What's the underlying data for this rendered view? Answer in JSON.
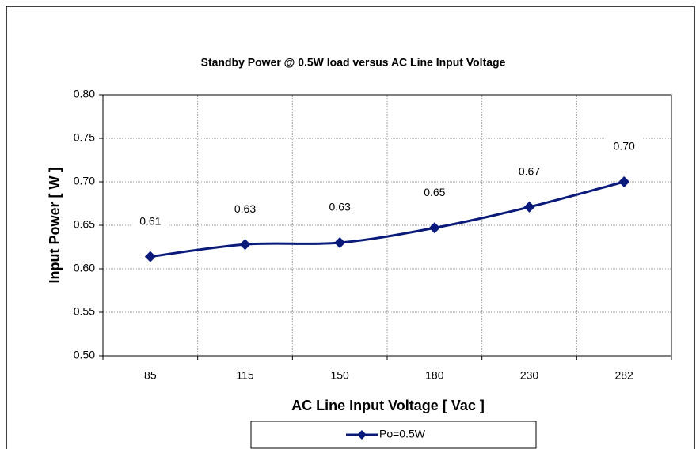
{
  "chart_data": {
    "type": "line",
    "title": "Standby Power @ 0.5W  load versus AC Line Input Voltage",
    "x_label": "AC Line Input Voltage [ Vac ]",
    "y_label": "Input Power [ W ]",
    "categories": [
      "85",
      "115",
      "150",
      "180",
      "230",
      "282"
    ],
    "series": [
      {
        "name": "Po=0.5W",
        "color": "#0a1a7a",
        "values": [
          0.614,
          0.628,
          0.63,
          0.647,
          0.671,
          0.7
        ],
        "value_labels": [
          "0.61",
          "0.63",
          "0.63",
          "0.65",
          "0.67",
          "0.70"
        ]
      }
    ],
    "ylim": [
      0.5,
      0.8
    ],
    "yticks": [
      {
        "value": 0.5,
        "label": "0.50"
      },
      0.55,
      {
        "value": 0.6,
        "label": "0.60"
      },
      0.65,
      {
        "value": 0.7,
        "label": "0.70"
      },
      0.75,
      {
        "value": 0.8,
        "label": "0.80"
      }
    ],
    "grid": true,
    "legend": "bottom"
  }
}
